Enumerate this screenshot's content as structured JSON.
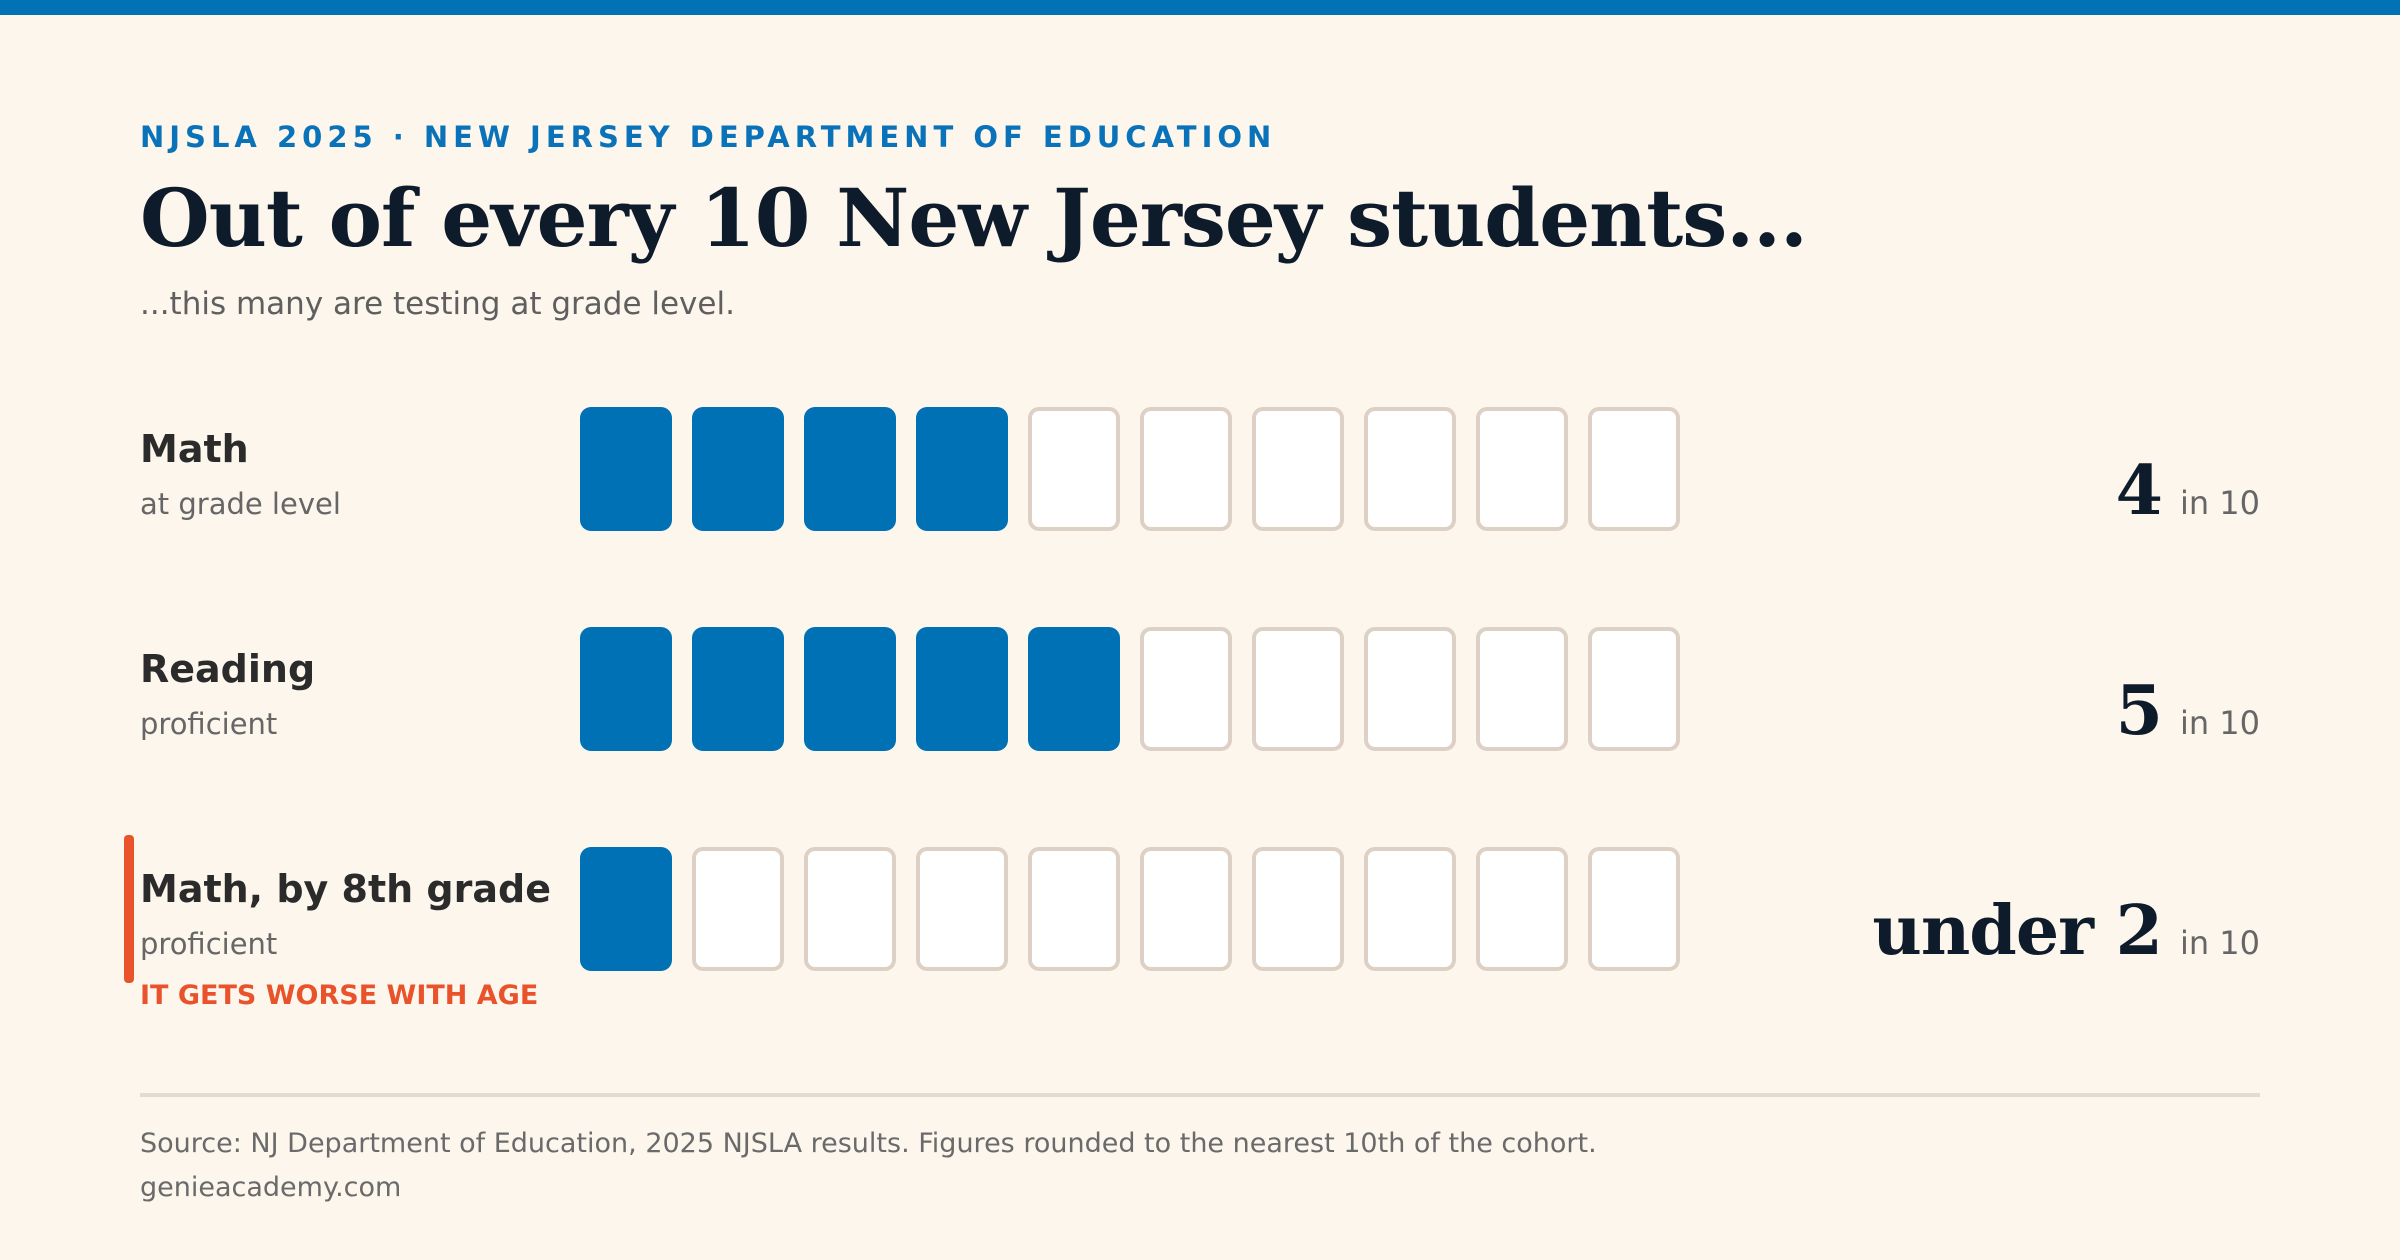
{
  "header": {
    "eyebrow": "NJSLA 2025 · NEW JERSEY DEPARTMENT OF EDUCATION",
    "title": "Out of every 10 New Jersey students...",
    "subtitle": "...this many are testing at grade level."
  },
  "colors": {
    "accent": "#0071b4",
    "filled": "#0071b4",
    "empty_fill": "#ffffff",
    "empty_border": "#ddd0c4",
    "highlight": "#e9532b",
    "background": "#fcf6ed"
  },
  "chart_data": {
    "type": "bar",
    "total_units": 10,
    "rows": [
      {
        "label": "Math",
        "sublabel": "at grade level",
        "filled": 4,
        "stat_value": "4",
        "stat_unit": "in 10",
        "note": ""
      },
      {
        "label": "Reading",
        "sublabel": "proficient",
        "filled": 5,
        "stat_value": "5",
        "stat_unit": "in 10",
        "note": ""
      },
      {
        "label": "Math, by 8th grade",
        "sublabel": "proficient",
        "filled": 1,
        "stat_value": "under 2",
        "stat_unit": "in 10",
        "note": "IT GETS WORSE WITH AGE",
        "highlight": true
      }
    ]
  },
  "footer": {
    "source": "Source: NJ Department of Education, 2025 NJSLA results. Figures rounded to the nearest 10th of the cohort.",
    "site": "genieacademy.com"
  }
}
